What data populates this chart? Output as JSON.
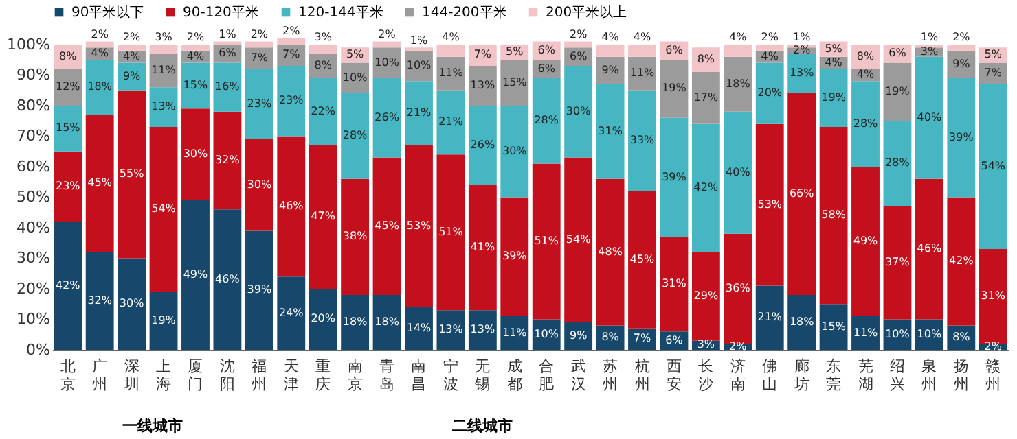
{
  "chart_data": {
    "type": "bar",
    "stacked": true,
    "legend": "top",
    "ylim": [
      0,
      102
    ],
    "yticks": [
      {
        "value": 0,
        "label": "0%"
      },
      {
        "value": 10,
        "label": "10%"
      },
      {
        "value": 20,
        "label": "20%"
      },
      {
        "value": 30,
        "label": "30%"
      },
      {
        "value": 40,
        "label": "40%"
      },
      {
        "value": 50,
        "label": "50%"
      },
      {
        "value": 60,
        "label": "60%"
      },
      {
        "value": 70,
        "label": "70%"
      },
      {
        "value": 80,
        "label": "80%"
      },
      {
        "value": 90,
        "label": "90%"
      },
      {
        "value": 100,
        "label": "100%"
      }
    ],
    "categories": [
      "北京",
      "广州",
      "深圳",
      "上海",
      "厦门",
      "沈阳",
      "福州",
      "天津",
      "重庆",
      "南京",
      "青岛",
      "南昌",
      "宁波",
      "无锡",
      "成都",
      "合肥",
      "武汉",
      "苏州",
      "杭州",
      "西安",
      "长沙",
      "济南",
      "佛山",
      "廊坊",
      "东莞",
      "芜湖",
      "绍兴",
      "泉州",
      "扬州",
      "赣州"
    ],
    "annotations": [
      "一线城市",
      "二线城市"
    ],
    "series": [
      {
        "name": "90平米以下",
        "color": "#17486b",
        "values": [
          42,
          32,
          30,
          19,
          49,
          46,
          39,
          24,
          20,
          18,
          18,
          14,
          13,
          13,
          11,
          10,
          9,
          8,
          7,
          6,
          3,
          2,
          21,
          18,
          15,
          11,
          10,
          10,
          8,
          2
        ],
        "value_labels": [
          "42%",
          "32%",
          "30%",
          "19%",
          "49%",
          "46%",
          "39%",
          "24%",
          "20%",
          "18%",
          "18%",
          "14%",
          "13%",
          "13%",
          "11%",
          "10%",
          "9%",
          "8%",
          "7%",
          "6%",
          "3%",
          "2%",
          "21%",
          "18%",
          "15%",
          "11%",
          "10%",
          "10%",
          "8%",
          "2%"
        ]
      },
      {
        "name": "90-120平米",
        "color": "#c40f1c",
        "values": [
          23,
          45,
          55,
          54,
          30,
          32,
          30,
          46,
          47,
          38,
          45,
          53,
          51,
          41,
          39,
          51,
          54,
          48,
          45,
          31,
          29,
          36,
          53,
          66,
          58,
          49,
          37,
          46,
          42,
          31
        ],
        "value_labels": [
          "23%",
          "45%",
          "55%",
          "54%",
          "30%",
          "32%",
          "30%",
          "46%",
          "47%",
          "38%",
          "45%",
          "53%",
          "51%",
          "41%",
          "39%",
          "51%",
          "54%",
          "48%",
          "45%",
          "31%",
          "29%",
          "36%",
          "53%",
          "66%",
          "58%",
          "49%",
          "37%",
          "46%",
          "42%",
          "31%"
        ]
      },
      {
        "name": "120-144平米",
        "color": "#46b6c2",
        "values": [
          15,
          18,
          9,
          13,
          15,
          16,
          23,
          23,
          22,
          28,
          26,
          21,
          21,
          26,
          30,
          28,
          30,
          31,
          33,
          39,
          42,
          40,
          20,
          13,
          19,
          28,
          28,
          40,
          39,
          54
        ],
        "value_labels": [
          "15%",
          "18%",
          "9%",
          "13%",
          "15%",
          "16%",
          "23%",
          "23%",
          "22%",
          "28%",
          "26%",
          "21%",
          "21%",
          "26%",
          "30%",
          "28%",
          "30%",
          "31%",
          "33%",
          "39%",
          "42%",
          "40%",
          "20%",
          "13%",
          "19%",
          "28%",
          "28%",
          "40%",
          "39%",
          "54%"
        ]
      },
      {
        "name": "144-200平米",
        "color": "#9b9b9b",
        "values": [
          12,
          4,
          4,
          11,
          4,
          6,
          7,
          7,
          8,
          10,
          10,
          10,
          11,
          13,
          15,
          6,
          6,
          9,
          11,
          19,
          17,
          18,
          4,
          2,
          4,
          4,
          19,
          3,
          9,
          7
        ],
        "value_labels": [
          "12%",
          "4%",
          "4%",
          "11%",
          "4%",
          "6%",
          "7%",
          "7%",
          "8%",
          "10%",
          "10%",
          "10%",
          "11%",
          "13%",
          "15%",
          "6%",
          "6%",
          "9%",
          "11%",
          "19%",
          "17%",
          "18%",
          "4%",
          "2%",
          "4%",
          "4%",
          "19%",
          "3%",
          "9%",
          "7%"
        ]
      },
      {
        "name": "200平米以上",
        "color": "#f3c4c7",
        "values": [
          8,
          2,
          2,
          3,
          2,
          1,
          2,
          2,
          3,
          5,
          2,
          1,
          4,
          7,
          5,
          6,
          2,
          4,
          4,
          6,
          8,
          4,
          2,
          1,
          5,
          8,
          6,
          1,
          2,
          5
        ],
        "value_labels": [
          "8%",
          "2%",
          "2%",
          "3%",
          "2%",
          "1%",
          "2%",
          "2%",
          "3%",
          "5%",
          "2%",
          "1%",
          "4%",
          "7%",
          "5%",
          "6%",
          "2%",
          "4%",
          "4%",
          "6%",
          "8%",
          "4%",
          "2%",
          "1%",
          "5%",
          "8%",
          "6%",
          "1%",
          "2%",
          "5%"
        ]
      }
    ]
  }
}
